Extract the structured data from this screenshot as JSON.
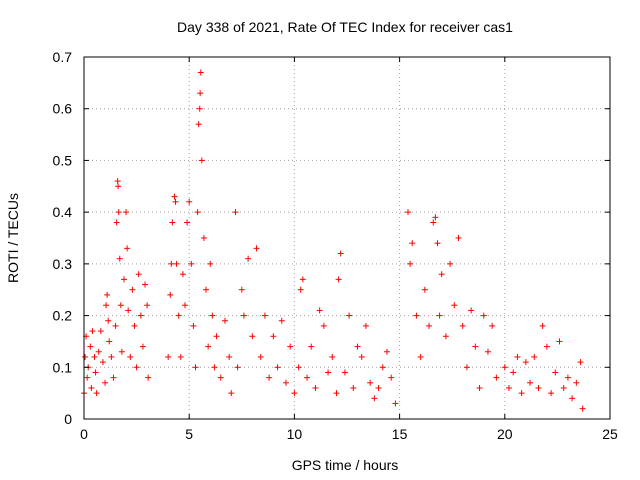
{
  "chart_data": {
    "type": "scatter",
    "title": "Day 338 of 2021, Rate Of TEC Index for receiver cas1",
    "xlabel": "GPS time / hours",
    "ylabel": "ROTI / TECUs",
    "xlim": [
      0,
      25
    ],
    "ylim": [
      0,
      0.7
    ],
    "xticks": [
      "0",
      "5",
      "10",
      "15",
      "20",
      "25"
    ],
    "yticks": [
      "0",
      "0.1",
      "0.2",
      "0.3",
      "0.4",
      "0.5",
      "0.6",
      "0.7"
    ],
    "grid": true,
    "marker": "+",
    "colors": {
      "points": "#ff0000",
      "grid": "#a0a0a0",
      "frame": "#000000"
    },
    "series": [
      {
        "points": [
          [
            0.0,
            0.05
          ],
          [
            0.05,
            0.12
          ],
          [
            0.1,
            0.16
          ],
          [
            0.15,
            0.08
          ],
          [
            0.2,
            0.1
          ],
          [
            0.3,
            0.14
          ],
          [
            0.35,
            0.06
          ],
          [
            0.4,
            0.17
          ],
          [
            0.5,
            0.12
          ],
          [
            0.55,
            0.09
          ],
          [
            0.6,
            0.05
          ],
          [
            0.7,
            0.13
          ],
          [
            0.8,
            0.17
          ],
          [
            0.9,
            0.11
          ],
          [
            1.0,
            0.07
          ],
          [
            1.05,
            0.22
          ],
          [
            1.1,
            0.24
          ],
          [
            1.15,
            0.19
          ],
          [
            1.2,
            0.15
          ],
          [
            1.3,
            0.12
          ],
          [
            1.4,
            0.08
          ],
          [
            1.5,
            0.18
          ],
          [
            1.55,
            0.38
          ],
          [
            1.6,
            0.46
          ],
          [
            1.62,
            0.45
          ],
          [
            1.65,
            0.4
          ],
          [
            1.7,
            0.31
          ],
          [
            1.75,
            0.22
          ],
          [
            1.8,
            0.13
          ],
          [
            1.9,
            0.27
          ],
          [
            2.0,
            0.4
          ],
          [
            2.05,
            0.33
          ],
          [
            2.1,
            0.21
          ],
          [
            2.2,
            0.12
          ],
          [
            2.3,
            0.25
          ],
          [
            2.4,
            0.18
          ],
          [
            2.5,
            0.1
          ],
          [
            2.6,
            0.28
          ],
          [
            2.7,
            0.2
          ],
          [
            2.8,
            0.14
          ],
          [
            2.9,
            0.26
          ],
          [
            3.0,
            0.22
          ],
          [
            3.05,
            0.08
          ],
          [
            4.0,
            0.12
          ],
          [
            4.1,
            0.24
          ],
          [
            4.15,
            0.3
          ],
          [
            4.2,
            0.38
          ],
          [
            4.3,
            0.43
          ],
          [
            4.35,
            0.42
          ],
          [
            4.4,
            0.3
          ],
          [
            4.5,
            0.2
          ],
          [
            4.6,
            0.12
          ],
          [
            4.7,
            0.28
          ],
          [
            4.8,
            0.22
          ],
          [
            4.9,
            0.38
          ],
          [
            5.0,
            0.42
          ],
          [
            5.1,
            0.3
          ],
          [
            5.2,
            0.18
          ],
          [
            5.3,
            0.1
          ],
          [
            5.4,
            0.4
          ],
          [
            5.45,
            0.57
          ],
          [
            5.5,
            0.6
          ],
          [
            5.52,
            0.63
          ],
          [
            5.55,
            0.67
          ],
          [
            5.6,
            0.5
          ],
          [
            5.7,
            0.35
          ],
          [
            5.8,
            0.25
          ],
          [
            5.9,
            0.14
          ],
          [
            6.0,
            0.3
          ],
          [
            6.1,
            0.2
          ],
          [
            6.2,
            0.1
          ],
          [
            6.3,
            0.16
          ],
          [
            6.5,
            0.08
          ],
          [
            6.7,
            0.19
          ],
          [
            6.9,
            0.12
          ],
          [
            7.0,
            0.05
          ],
          [
            7.2,
            0.4
          ],
          [
            7.3,
            0.1
          ],
          [
            7.5,
            0.25
          ],
          [
            7.6,
            0.2
          ],
          [
            7.8,
            0.31
          ],
          [
            8.0,
            0.16
          ],
          [
            8.2,
            0.33
          ],
          [
            8.4,
            0.12
          ],
          [
            8.6,
            0.2
          ],
          [
            8.8,
            0.08
          ],
          [
            9.0,
            0.16
          ],
          [
            9.2,
            0.1
          ],
          [
            9.4,
            0.19
          ],
          [
            9.6,
            0.07
          ],
          [
            9.8,
            0.14
          ],
          [
            10.0,
            0.05
          ],
          [
            10.2,
            0.1
          ],
          [
            10.3,
            0.25
          ],
          [
            10.4,
            0.27
          ],
          [
            10.6,
            0.08
          ],
          [
            10.8,
            0.14
          ],
          [
            11.0,
            0.06
          ],
          [
            11.2,
            0.21
          ],
          [
            11.4,
            0.18
          ],
          [
            11.6,
            0.09
          ],
          [
            11.8,
            0.12
          ],
          [
            12.0,
            0.05
          ],
          [
            12.1,
            0.27
          ],
          [
            12.2,
            0.32
          ],
          [
            12.4,
            0.09
          ],
          [
            12.6,
            0.2
          ],
          [
            12.8,
            0.06
          ],
          [
            13.0,
            0.14
          ],
          [
            13.2,
            0.12
          ],
          [
            13.4,
            0.18
          ],
          [
            13.6,
            0.07
          ],
          [
            13.8,
            0.04
          ],
          [
            14.0,
            0.06
          ],
          [
            14.2,
            0.1
          ],
          [
            14.4,
            0.13
          ],
          [
            14.6,
            0.08
          ],
          [
            14.8,
            0.03
          ],
          [
            15.4,
            0.4
          ],
          [
            15.5,
            0.3
          ],
          [
            15.6,
            0.34
          ],
          [
            15.8,
            0.2
          ],
          [
            16.0,
            0.12
          ],
          [
            16.2,
            0.25
          ],
          [
            16.4,
            0.18
          ],
          [
            16.6,
            0.38
          ],
          [
            16.7,
            0.39
          ],
          [
            16.8,
            0.34
          ],
          [
            16.9,
            0.2
          ],
          [
            17.0,
            0.28
          ],
          [
            17.2,
            0.16
          ],
          [
            17.4,
            0.3
          ],
          [
            17.6,
            0.22
          ],
          [
            17.8,
            0.35
          ],
          [
            18.0,
            0.18
          ],
          [
            18.2,
            0.1
          ],
          [
            18.4,
            0.21
          ],
          [
            18.6,
            0.14
          ],
          [
            18.8,
            0.06
          ],
          [
            19.0,
            0.2
          ],
          [
            19.2,
            0.13
          ],
          [
            19.4,
            0.18
          ],
          [
            19.6,
            0.08
          ],
          [
            20.0,
            0.1
          ],
          [
            20.2,
            0.06
          ],
          [
            20.4,
            0.09
          ],
          [
            20.6,
            0.12
          ],
          [
            20.8,
            0.05
          ],
          [
            21.0,
            0.11
          ],
          [
            21.2,
            0.07
          ],
          [
            21.4,
            0.12
          ],
          [
            21.6,
            0.06
          ],
          [
            21.8,
            0.18
          ],
          [
            22.0,
            0.14
          ],
          [
            22.2,
            0.05
          ],
          [
            22.4,
            0.09
          ],
          [
            22.6,
            0.15
          ],
          [
            22.8,
            0.06
          ],
          [
            23.0,
            0.08
          ],
          [
            23.2,
            0.04
          ],
          [
            23.4,
            0.07
          ],
          [
            23.6,
            0.11
          ],
          [
            23.7,
            0.02
          ]
        ]
      }
    ]
  }
}
